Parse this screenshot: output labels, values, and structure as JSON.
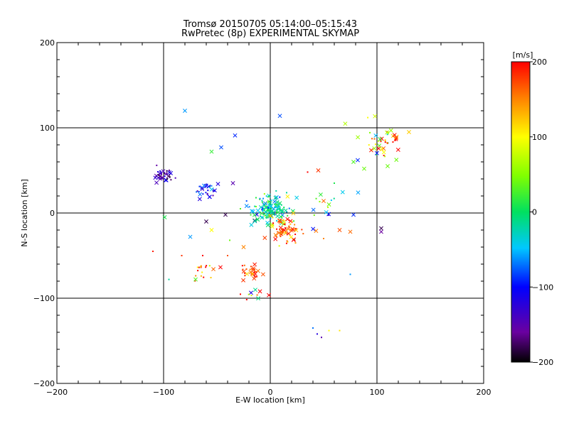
{
  "chart_data": {
    "type": "scatter",
    "title": "Tromsø 20150705 05:14:00–05:15:43",
    "subtitle": "RwPretec (8p) EXPERIMENTAL SKYMAP",
    "xlabel": "E-W location [km]",
    "ylabel": "N-S location [km]",
    "xlim": [
      -200,
      200
    ],
    "ylim": [
      -200,
      200
    ],
    "xticks": [
      "-200",
      "-100",
      "0",
      "100",
      "200"
    ],
    "yticks": [
      "-200",
      "-100",
      "0",
      "100",
      "200"
    ],
    "grid_lines": [
      -100,
      0,
      100
    ],
    "colorbar": {
      "label": "[m/s]",
      "range": [
        -200,
        200
      ],
      "ticks": [
        "200",
        "100",
        "0",
        "-100",
        "-200"
      ],
      "colormap": "rainbow (black-purple-blue-cyan-green-yellow-red)"
    },
    "marker_types": [
      "small dot",
      "cross"
    ],
    "point_clusters": [
      {
        "x": -100,
        "y": 44,
        "spread": [
          4,
          4
        ],
        "count": 40,
        "velocity": -155,
        "vspread": 30
      },
      {
        "x": -60,
        "y": 28,
        "spread": [
          7,
          5
        ],
        "count": 30,
        "velocity": -95,
        "vspread": 30
      },
      {
        "x": 0,
        "y": 5,
        "spread": [
          9,
          9
        ],
        "count": 140,
        "velocity": -20,
        "vspread": 40
      },
      {
        "x": 15,
        "y": -20,
        "spread": [
          8,
          8
        ],
        "count": 70,
        "velocity": 170,
        "vspread": 40
      },
      {
        "x": -17,
        "y": -70,
        "spread": [
          5,
          5
        ],
        "count": 30,
        "velocity": 185,
        "vspread": 25
      },
      {
        "x": -60,
        "y": -68,
        "spread": [
          8,
          6
        ],
        "count": 18,
        "velocity": 150,
        "vspread": 60
      },
      {
        "x": 105,
        "y": 85,
        "spread": [
          9,
          9
        ],
        "count": 45,
        "velocity": 110,
        "vspread": 80
      },
      {
        "x": -20,
        "y": -96,
        "spread": [
          8,
          3
        ],
        "count": 10,
        "velocity": 100,
        "vspread": 120
      },
      {
        "x": 45,
        "y": 8,
        "spread": [
          12,
          10
        ],
        "count": 20,
        "velocity": -40,
        "vspread": 80
      }
    ],
    "points": [
      {
        "x": -80,
        "y": 120,
        "v": -60,
        "m": "x"
      },
      {
        "x": 9,
        "y": 114,
        "v": -80,
        "m": "x"
      },
      {
        "x": -33,
        "y": 91,
        "v": -90,
        "m": "x"
      },
      {
        "x": -55,
        "y": 72,
        "v": 20,
        "m": "x"
      },
      {
        "x": -46,
        "y": 77,
        "v": -80,
        "m": "x"
      },
      {
        "x": 78,
        "y": -2,
        "v": -90,
        "m": "x"
      },
      {
        "x": 75,
        "y": -72,
        "v": -60,
        "m": "."
      },
      {
        "x": -110,
        "y": -45,
        "v": 190,
        "m": "."
      },
      {
        "x": -99,
        "y": -5,
        "v": 10,
        "m": "x"
      },
      {
        "x": -95,
        "y": -78,
        "v": -20,
        "m": "."
      },
      {
        "x": -70,
        "y": -78,
        "v": 30,
        "m": "x"
      },
      {
        "x": -75,
        "y": -28,
        "v": -60,
        "m": "x"
      },
      {
        "x": 104,
        "y": -18,
        "v": -180,
        "m": "x"
      },
      {
        "x": 104,
        "y": -22,
        "v": -160,
        "m": "x"
      },
      {
        "x": 75,
        "y": -22,
        "v": 160,
        "m": "x"
      },
      {
        "x": 65,
        "y": -20,
        "v": 170,
        "m": "x"
      },
      {
        "x": 45,
        "y": 50,
        "v": 180,
        "m": "x"
      },
      {
        "x": 35,
        "y": 48,
        "v": 200,
        "m": "."
      },
      {
        "x": 40,
        "y": -135,
        "v": -70,
        "m": "."
      },
      {
        "x": 44,
        "y": -142,
        "v": -120,
        "m": "."
      },
      {
        "x": 48,
        "y": -146,
        "v": -150,
        "m": "."
      },
      {
        "x": 55,
        "y": -138,
        "v": 100,
        "m": "."
      },
      {
        "x": 65,
        "y": -138,
        "v": 110,
        "m": "."
      },
      {
        "x": 82,
        "y": 62,
        "v": -90,
        "m": "x"
      },
      {
        "x": 78,
        "y": 60,
        "v": 30,
        "m": "x"
      },
      {
        "x": 88,
        "y": 52,
        "v": 40,
        "m": "x"
      },
      {
        "x": 118,
        "y": 88,
        "v": 180,
        "m": "x"
      },
      {
        "x": 130,
        "y": 95,
        "v": 120,
        "m": "x"
      },
      {
        "x": 110,
        "y": 55,
        "v": 40,
        "m": "x"
      },
      {
        "x": -40,
        "y": -50,
        "v": 170,
        "m": "."
      },
      {
        "x": -83,
        "y": -50,
        "v": 180,
        "m": "."
      },
      {
        "x": -35,
        "y": 35,
        "v": -150,
        "m": "x"
      },
      {
        "x": -28,
        "y": 5,
        "v": 30,
        "m": "."
      },
      {
        "x": -25,
        "y": -40,
        "v": 150,
        "m": "x"
      },
      {
        "x": -38,
        "y": -32,
        "v": 40,
        "m": "."
      },
      {
        "x": -60,
        "y": -10,
        "v": -180,
        "m": "x"
      },
      {
        "x": -55,
        "y": -20,
        "v": 100,
        "m": "x"
      },
      {
        "x": -42,
        "y": -2,
        "v": -180,
        "m": "x"
      },
      {
        "x": 50,
        "y": -30,
        "v": 150,
        "m": "."
      },
      {
        "x": 55,
        "y": 10,
        "v": 40,
        "m": "x"
      },
      {
        "x": 60,
        "y": 35,
        "v": 10,
        "m": "."
      }
    ]
  }
}
